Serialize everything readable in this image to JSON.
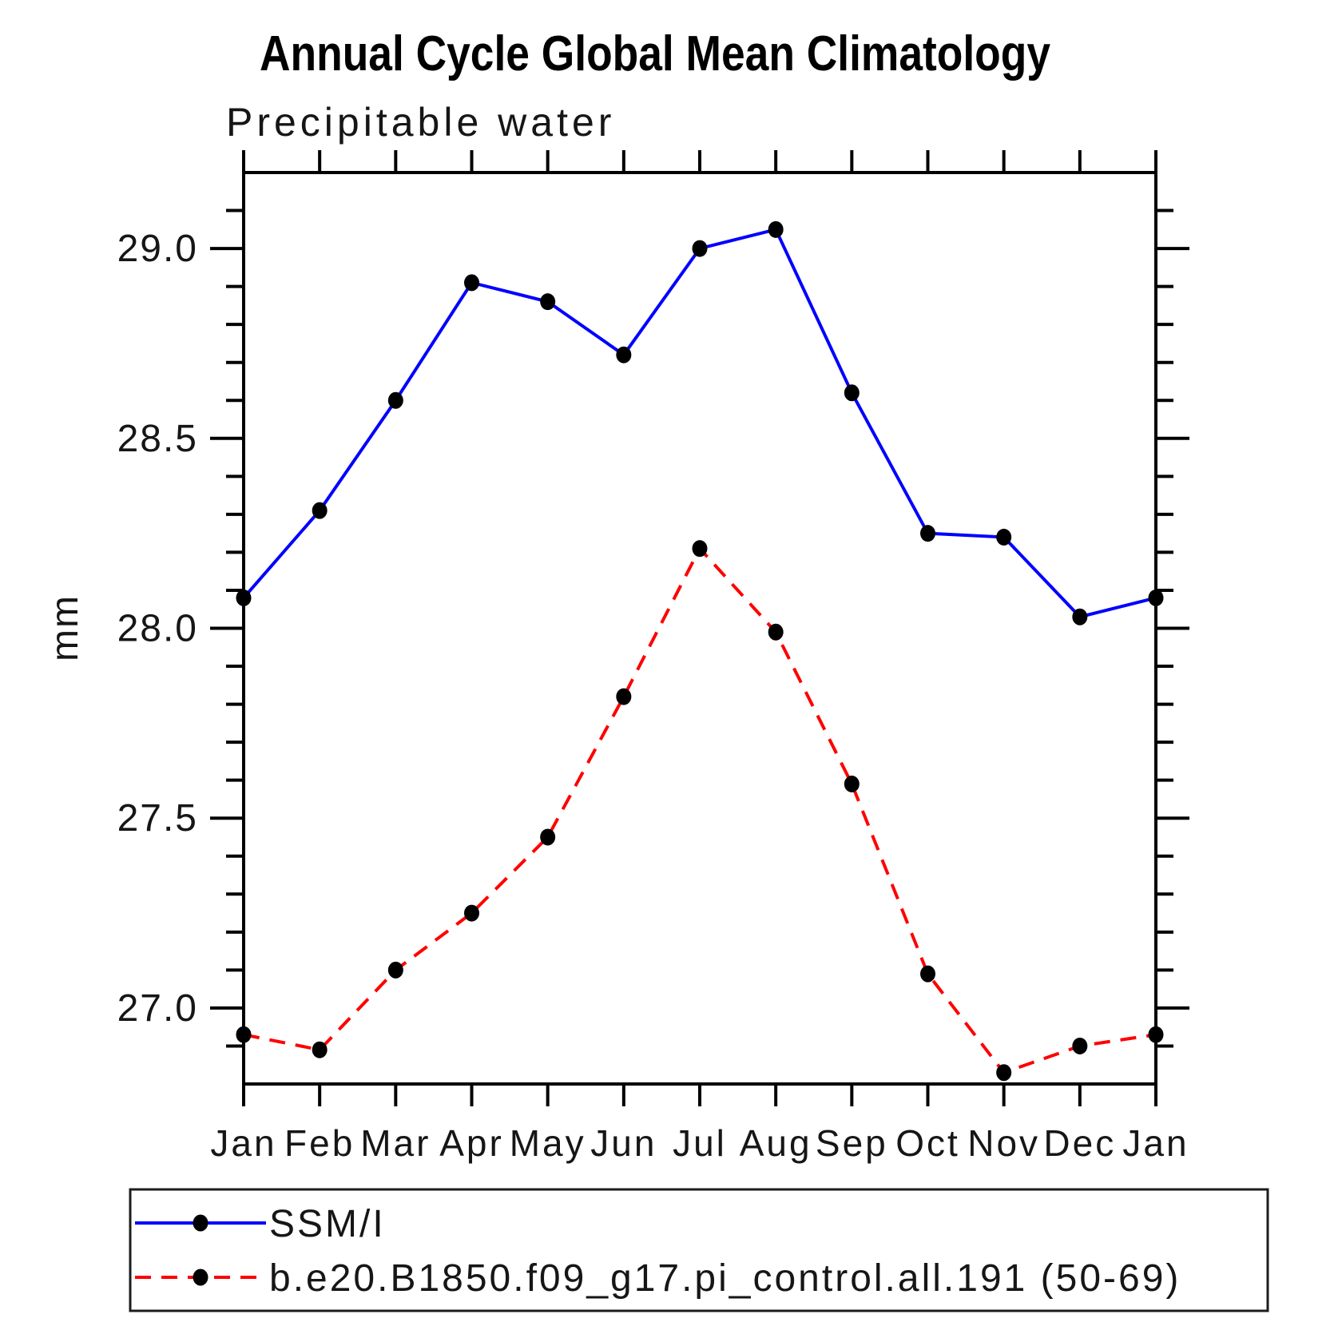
{
  "chart_data": {
    "type": "line",
    "title": "Annual Cycle Global Mean Climatology",
    "subtitle": "Precipitable water",
    "ylabel": "mm",
    "xlabel": "",
    "x_tick_labels": [
      "Jan",
      "Feb",
      "Mar",
      "Apr",
      "May",
      "Jun",
      "Jul",
      "Aug",
      "Sep",
      "Oct",
      "Nov",
      "Dec",
      "Jan"
    ],
    "ylim": [
      26.8,
      29.2
    ],
    "ytick_major": [
      27.0,
      27.5,
      28.0,
      28.5,
      29.0
    ],
    "ytick_major_labels": [
      "27.0",
      "27.5",
      "28.0",
      "28.5",
      "29.0"
    ],
    "ytick_minor_step": 0.1,
    "grid": false,
    "axis_color": "#000000",
    "legend_position": "bottom-left-outside-box",
    "series": [
      {
        "name": "SSM/I",
        "line_color": "#0000ff",
        "line_style": "solid",
        "marker": "filled-circle",
        "marker_color": "#000000",
        "values": [
          28.08,
          28.31,
          28.6,
          28.91,
          28.86,
          28.72,
          29.0,
          29.05,
          28.62,
          28.25,
          28.24,
          28.03,
          28.08
        ]
      },
      {
        "name": "b.e20.B1850.f09_g17.pi_control.all.191 (50-69)",
        "line_color": "#ff0000",
        "line_style": "dashed",
        "marker": "filled-circle",
        "marker_color": "#000000",
        "values": [
          26.93,
          26.89,
          27.1,
          27.25,
          27.45,
          27.82,
          28.21,
          27.99,
          27.59,
          27.09,
          26.83,
          26.9,
          26.93
        ]
      }
    ]
  }
}
